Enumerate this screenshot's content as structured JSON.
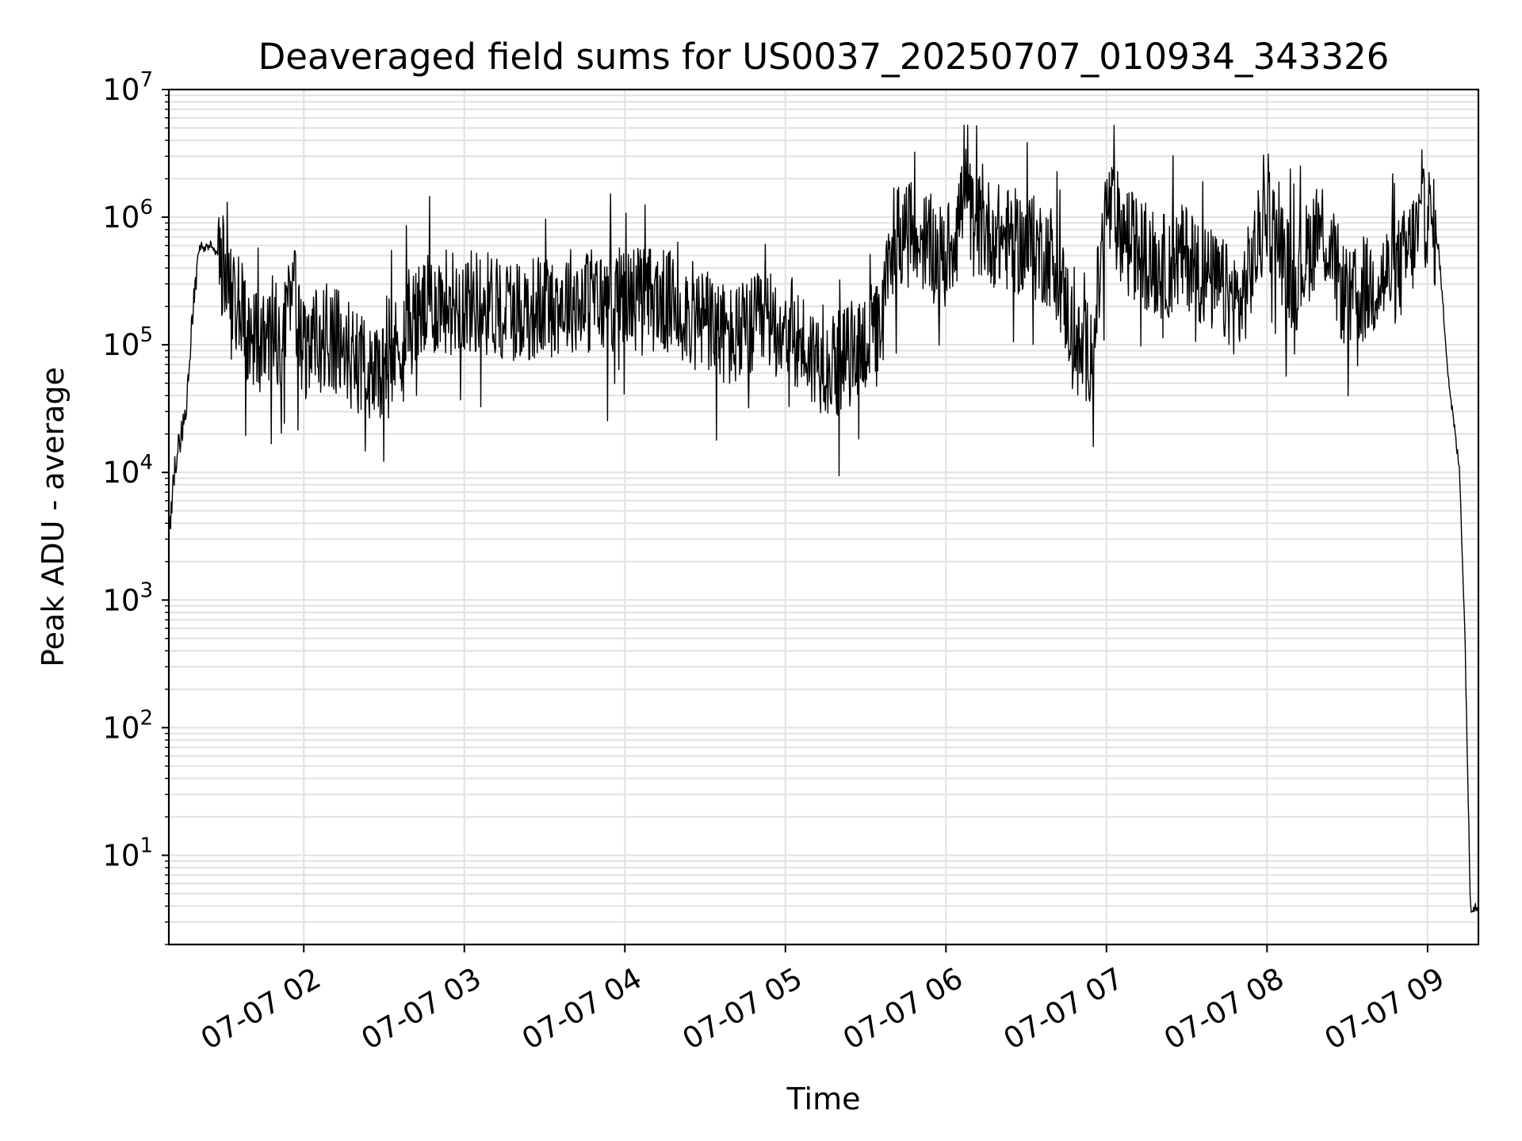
{
  "chart_data": {
    "type": "line",
    "title": "Deaveraged field sums for US0037_20250707_010934_343326",
    "xlabel": "Time",
    "ylabel": "Peak ADU - average",
    "y_scale": "log",
    "ylim": [
      2,
      10000000
    ],
    "xlim": [
      "2025-07-07 01:09:34",
      "2025-07-07 09:19:00"
    ],
    "x_tick_labels": [
      "07-07 02",
      "07-07 03",
      "07-07 04",
      "07-07 05",
      "07-07 06",
      "07-07 07",
      "07-07 08",
      "07-07 09"
    ],
    "x_tick_times": [
      "2025-07-07 02:00",
      "2025-07-07 03:00",
      "2025-07-07 04:00",
      "2025-07-07 05:00",
      "2025-07-07 06:00",
      "2025-07-07 07:00",
      "2025-07-07 08:00",
      "2025-07-07 09:00"
    ],
    "y_ticks": [
      {
        "value": 10,
        "base": "10",
        "exp": "1"
      },
      {
        "value": 100,
        "base": "10",
        "exp": "2"
      },
      {
        "value": 1000,
        "base": "10",
        "exp": "3"
      },
      {
        "value": 10000,
        "base": "10",
        "exp": "4"
      },
      {
        "value": 100000,
        "base": "10",
        "exp": "5"
      },
      {
        "value": 1000000,
        "base": "10",
        "exp": "6"
      },
      {
        "value": 10000000,
        "base": "10",
        "exp": "7"
      }
    ],
    "grid": true,
    "legend": "none",
    "line_color": "#000000",
    "series": [
      {
        "x": [
          "2025-07-07 01:09:34",
          "2025-07-07 01:12",
          "2025-07-07 01:14",
          "2025-07-07 01:16",
          "2025-07-07 01:18",
          "2025-07-07 01:20",
          "2025-07-07 01:21",
          "2025-07-07 01:22",
          "2025-07-07 01:23",
          "2025-07-07 01:24",
          "2025-07-07 01:25",
          "2025-07-07 01:28",
          "2025-07-07 01:32",
          "2025-07-07 01:36",
          "2025-07-07 01:40",
          "2025-07-07 01:44",
          "2025-07-07 01:48",
          "2025-07-07 01:52",
          "2025-07-07 01:56",
          "2025-07-07 02:00",
          "2025-07-07 02:10",
          "2025-07-07 02:20",
          "2025-07-07 02:30",
          "2025-07-07 02:40",
          "2025-07-07 02:50",
          "2025-07-07 03:00",
          "2025-07-07 03:10",
          "2025-07-07 03:20",
          "2025-07-07 03:30",
          "2025-07-07 03:40",
          "2025-07-07 03:50",
          "2025-07-07 04:00",
          "2025-07-07 04:10",
          "2025-07-07 04:20",
          "2025-07-07 04:30",
          "2025-07-07 04:40",
          "2025-07-07 04:50",
          "2025-07-07 05:00",
          "2025-07-07 05:10",
          "2025-07-07 05:20",
          "2025-07-07 05:30",
          "2025-07-07 05:36",
          "2025-07-07 05:40",
          "2025-07-07 05:50",
          "2025-07-07 06:00",
          "2025-07-07 06:07",
          "2025-07-07 06:10",
          "2025-07-07 06:20",
          "2025-07-07 06:30",
          "2025-07-07 06:40",
          "2025-07-07 06:50",
          "2025-07-07 06:55",
          "2025-07-07 07:00",
          "2025-07-07 07:10",
          "2025-07-07 07:20",
          "2025-07-07 07:30",
          "2025-07-07 07:40",
          "2025-07-07 07:50",
          "2025-07-07 08:00",
          "2025-07-07 08:10",
          "2025-07-07 08:20",
          "2025-07-07 08:30",
          "2025-07-07 08:40",
          "2025-07-07 08:50",
          "2025-07-07 09:00",
          "2025-07-07 09:04",
          "2025-07-07 09:08",
          "2025-07-07 09:12",
          "2025-07-07 09:14",
          "2025-07-07 09:16",
          "2025-07-07 09:19"
        ],
        "y": [
          3000,
          12000,
          20000,
          30000,
          130000,
          400000,
          560000,
          590000,
          570000,
          560000,
          610000,
          480000,
          330000,
          200000,
          110000,
          100000,
          150000,
          90000,
          280000,
          90000,
          120000,
          70000,
          60000,
          150000,
          220000,
          220000,
          210000,
          190000,
          200000,
          230000,
          210000,
          240000,
          230000,
          200000,
          150000,
          110000,
          140000,
          150000,
          80000,
          70000,
          110000,
          120000,
          800000,
          700000,
          450000,
          1500000,
          900000,
          700000,
          600000,
          500000,
          80000,
          100000,
          1200000,
          600000,
          400000,
          500000,
          300000,
          200000,
          1100000,
          300000,
          900000,
          200000,
          300000,
          400000,
          1100000,
          600000,
          50000,
          10000,
          500,
          4,
          4
        ]
      }
    ]
  }
}
